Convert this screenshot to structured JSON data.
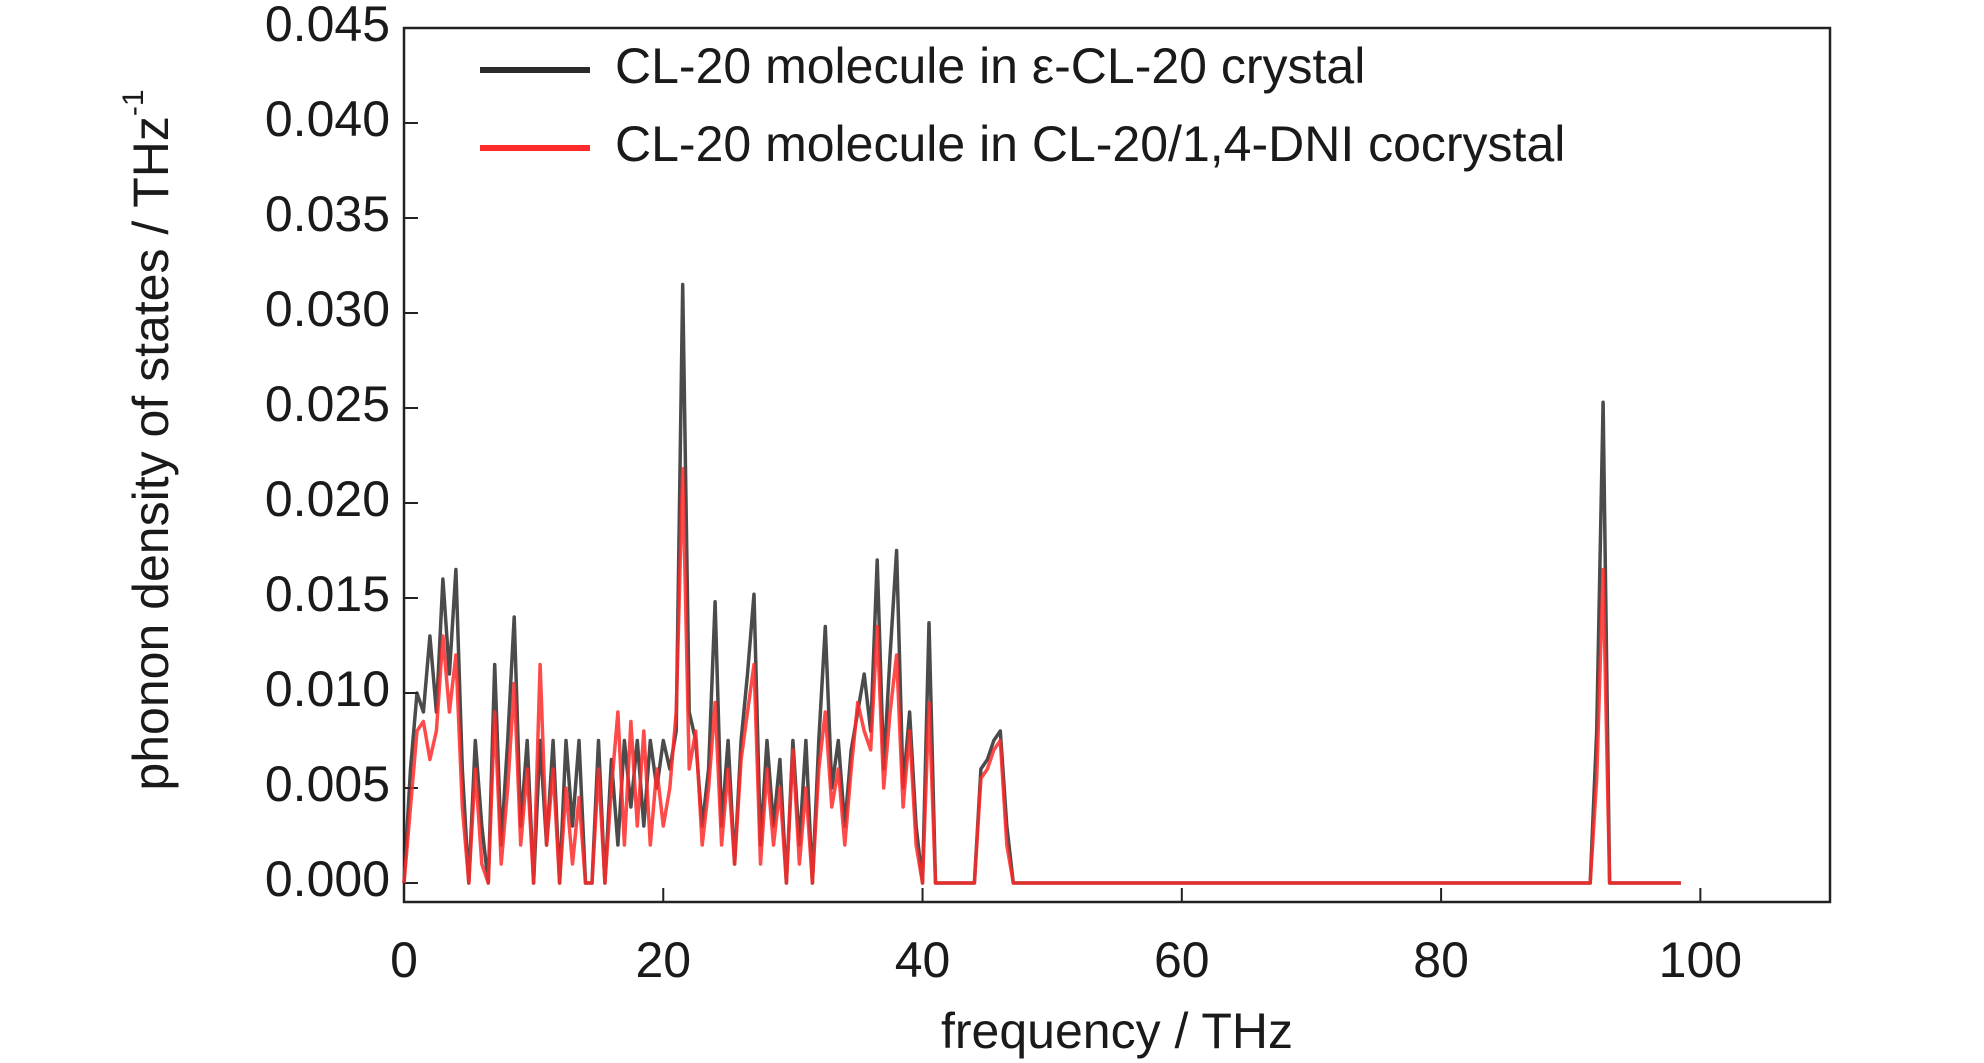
{
  "chart_data": {
    "type": "line",
    "xlabel": "frequency / THz",
    "ylabel": "phonon density of states / THz",
    "ylabel_exponent": "-1",
    "xlim": [
      0,
      110
    ],
    "ylim": [
      -0.001,
      0.045
    ],
    "xticks": [
      0,
      20,
      40,
      60,
      80,
      100
    ],
    "yticks": [
      {
        "value": 0,
        "label": "0.000"
      },
      {
        "value": 0.005,
        "label": "0.005"
      },
      {
        "value": 0.01,
        "label": "0.010"
      },
      {
        "value": 0.015,
        "label": "0.015"
      },
      {
        "value": 0.02,
        "label": "0.020"
      },
      {
        "value": 0.025,
        "label": "0.025"
      },
      {
        "value": 0.03,
        "label": "0.030"
      },
      {
        "value": 0.035,
        "label": "0.035"
      },
      {
        "value": 0.04,
        "label": "0.040"
      },
      {
        "value": 0.045,
        "label": "0.045"
      }
    ],
    "legend": "upper left",
    "x": [
      0,
      0.5,
      1,
      1.5,
      2,
      2.5,
      3,
      3.5,
      4,
      4.5,
      5,
      5.5,
      6,
      6.5,
      7,
      7.5,
      8,
      8.5,
      9,
      9.5,
      10,
      10.5,
      11,
      11.5,
      12,
      12.5,
      13,
      13.5,
      14,
      14.5,
      15,
      15.5,
      16,
      16.5,
      17,
      17.5,
      18,
      18.5,
      19,
      19.5,
      20,
      20.5,
      21,
      21.5,
      22,
      22.5,
      23,
      23.5,
      24,
      24.5,
      25,
      25.5,
      26,
      26.5,
      27,
      27.5,
      28,
      28.5,
      29,
      29.5,
      30,
      30.5,
      31,
      31.5,
      32,
      32.5,
      33,
      33.5,
      34,
      34.5,
      35,
      35.5,
      36,
      36.5,
      37,
      37.5,
      38,
      38.5,
      39,
      39.5,
      40,
      40.5,
      41,
      41.5,
      42,
      42.5,
      43,
      43.5,
      44,
      44.5,
      45,
      45.5,
      46,
      46.5,
      47,
      47.5,
      48,
      91.5,
      92,
      92.5,
      93,
      98.5
    ],
    "series": [
      {
        "name": "CL-20 molecule in ε-CL-20 crystal",
        "color": "#2b2b2b",
        "values": [
          0,
          0.006,
          0.01,
          0.009,
          0.013,
          0.009,
          0.016,
          0.011,
          0.0165,
          0.006,
          0,
          0.0075,
          0.003,
          0,
          0.0115,
          0.002,
          0.0075,
          0.014,
          0.003,
          0.0075,
          0,
          0.0075,
          0.002,
          0.0075,
          0,
          0.0075,
          0.003,
          0.0075,
          0,
          0,
          0.0075,
          0,
          0.0065,
          0.002,
          0.0075,
          0.004,
          0.0075,
          0.003,
          0.0075,
          0.005,
          0.0075,
          0.006,
          0.008,
          0.0315,
          0.009,
          0.0075,
          0.003,
          0.006,
          0.0148,
          0.003,
          0.0075,
          0.001,
          0.0075,
          0.011,
          0.0152,
          0.002,
          0.0075,
          0.003,
          0.0065,
          0,
          0.0075,
          0.002,
          0.0075,
          0,
          0.0075,
          0.0135,
          0.005,
          0.0075,
          0.003,
          0.007,
          0.009,
          0.011,
          0.008,
          0.017,
          0.006,
          0.012,
          0.0175,
          0.005,
          0.009,
          0.003,
          0,
          0.0137,
          0,
          0,
          0,
          0,
          0,
          0,
          0,
          0.006,
          0.0065,
          0.0075,
          0.008,
          0.003,
          0,
          0,
          0,
          0,
          0.008,
          0.0253,
          0,
          0
        ]
      },
      {
        "name": "CL-20 molecule in CL-20/1,4-DNI cocrystal",
        "color": "#ff2a2a",
        "values": [
          0,
          0.004,
          0.008,
          0.0085,
          0.0065,
          0.008,
          0.013,
          0.009,
          0.012,
          0.004,
          0,
          0.006,
          0.001,
          0,
          0.009,
          0.001,
          0.005,
          0.0105,
          0.002,
          0.006,
          0,
          0.0115,
          0.002,
          0.006,
          0,
          0.005,
          0.001,
          0.0045,
          0,
          0,
          0.006,
          0,
          0.005,
          0.009,
          0.002,
          0.0085,
          0.003,
          0.008,
          0.002,
          0.006,
          0.003,
          0.005,
          0.009,
          0.0218,
          0.006,
          0.008,
          0.002,
          0.005,
          0.0095,
          0.002,
          0.006,
          0.001,
          0.0065,
          0.009,
          0.0115,
          0.001,
          0.006,
          0.002,
          0.005,
          0,
          0.007,
          0.001,
          0.005,
          0,
          0.006,
          0.009,
          0.004,
          0.006,
          0.002,
          0.006,
          0.0095,
          0.008,
          0.007,
          0.0135,
          0.005,
          0.009,
          0.012,
          0.004,
          0.008,
          0.002,
          0,
          0.0095,
          0,
          0,
          0,
          0,
          0,
          0,
          0,
          0.0055,
          0.006,
          0.007,
          0.0075,
          0.002,
          0,
          0,
          0,
          0,
          0.0055,
          0.0165,
          0,
          0
        ]
      }
    ]
  }
}
